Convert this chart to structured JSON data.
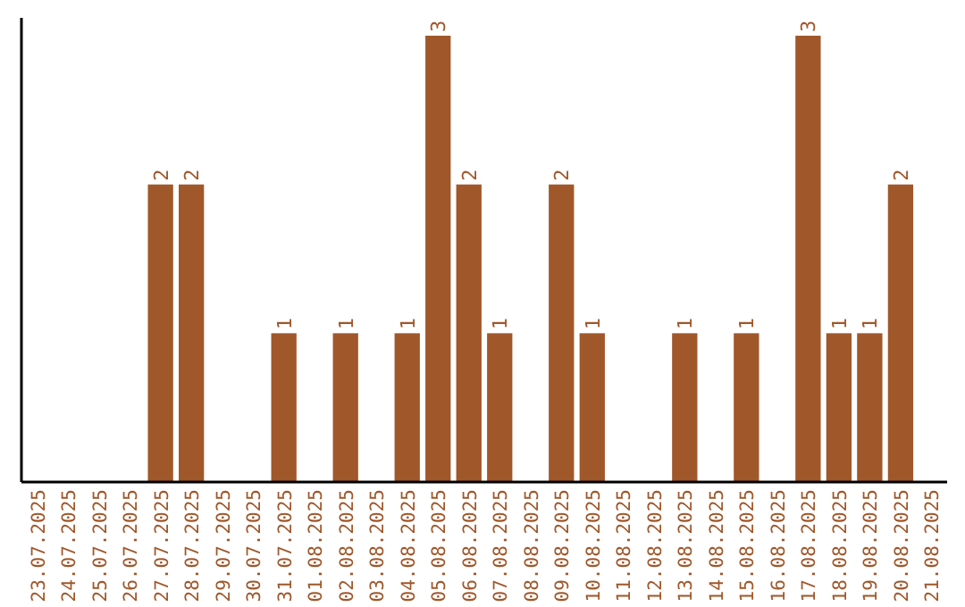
{
  "chart_data": {
    "type": "bar",
    "categories": [
      "23.07.2025",
      "24.07.2025",
      "25.07.2025",
      "26.07.2025",
      "27.07.2025",
      "28.07.2025",
      "29.07.2025",
      "30.07.2025",
      "31.07.2025",
      "01.08.2025",
      "02.08.2025",
      "03.08.2025",
      "04.08.2025",
      "05.08.2025",
      "06.08.2025",
      "07.08.2025",
      "08.08.2025",
      "09.08.2025",
      "10.08.2025",
      "11.08.2025",
      "12.08.2025",
      "13.08.2025",
      "14.08.2025",
      "15.08.2025",
      "16.08.2025",
      "17.08.2025",
      "18.08.2025",
      "19.08.2025",
      "20.08.2025",
      "21.08.2025"
    ],
    "values": [
      0,
      0,
      0,
      0,
      2,
      2,
      0,
      0,
      1,
      0,
      1,
      0,
      1,
      3,
      2,
      1,
      0,
      2,
      1,
      0,
      0,
      1,
      0,
      1,
      0,
      3,
      1,
      1,
      2,
      0
    ],
    "value_labels": [
      null,
      null,
      null,
      null,
      "2",
      "2",
      null,
      null,
      "1",
      null,
      "1",
      null,
      "1",
      "3",
      "2",
      "1",
      null,
      "2",
      "1",
      null,
      null,
      "1",
      null,
      "1",
      null,
      "3",
      "1",
      "1",
      "2",
      null
    ],
    "color": "#a0572a",
    "ylim": [
      0,
      3
    ],
    "tick_labels": "x"
  }
}
